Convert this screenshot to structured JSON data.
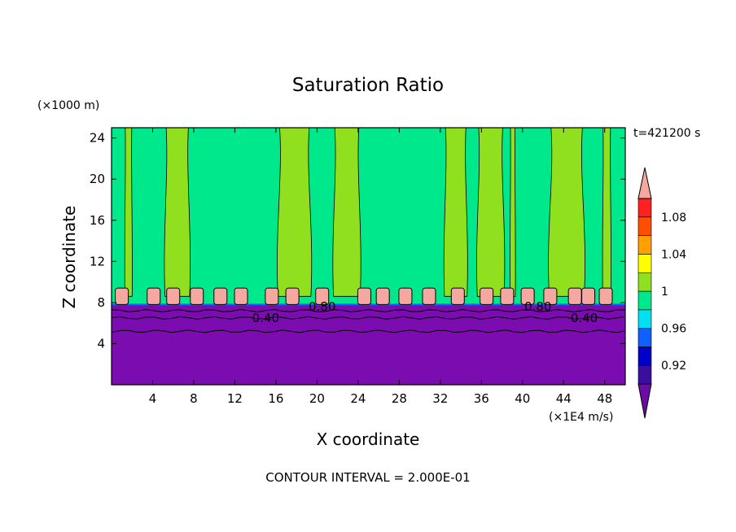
{
  "chart_data": {
    "type": "heatmap",
    "title": "Saturation Ratio",
    "xlabel": "X coordinate",
    "ylabel": "Z coordinate",
    "x_unit": "(×1E4 m/s)",
    "y_unit": "(×1000 m)",
    "time_label": "t=421200 s",
    "footer": "CONTOUR INTERVAL = 2.000E-01",
    "xlim": [
      0,
      50
    ],
    "ylim": [
      0,
      25
    ],
    "x_ticks": [
      4,
      8,
      12,
      16,
      20,
      24,
      28,
      32,
      36,
      40,
      44,
      48
    ],
    "y_ticks": [
      4,
      8,
      12,
      16,
      20,
      24
    ],
    "contour_labels": [
      {
        "text": "0.40",
        "x": 15.0,
        "z": 6.5
      },
      {
        "text": "0.80",
        "x": 20.5,
        "z": 7.6
      },
      {
        "text": "0.80",
        "x": 41.5,
        "z": 7.6
      },
      {
        "text": "0.40",
        "x": 46.0,
        "z": 6.5
      }
    ],
    "colorbar": {
      "tick_labels": [
        "1.08",
        "1.04",
        "1",
        "0.96",
        "0.92"
      ],
      "levels": [
        0.9,
        0.92,
        0.94,
        0.96,
        0.98,
        1.0,
        1.02,
        1.04,
        1.06,
        1.08,
        1.1
      ],
      "colors": [
        "#6a0ca8",
        "#3a0fa0",
        "#0000c8",
        "#1060ff",
        "#00e0f0",
        "#00e88c",
        "#90e020",
        "#ffff00",
        "#ffa000",
        "#ff5000",
        "#ff2020",
        "#f4a8a0"
      ]
    },
    "regions": {
      "dry_layer_top_z": 7.8,
      "dry_color": "#7a0cb0",
      "upper_color": "#00e88c",
      "column_color": "#90e020",
      "cap_color": "#f4a8a0",
      "columns": [
        {
          "x0": 5.2,
          "x1": 7.6
        },
        {
          "x0": 16.2,
          "x1": 19.4
        },
        {
          "x0": 21.6,
          "x1": 24.2
        },
        {
          "x0": 32.4,
          "x1": 34.6
        },
        {
          "x0": 35.6,
          "x1": 38.2
        },
        {
          "x0": 42.6,
          "x1": 46.0
        },
        {
          "x0": 1.3,
          "x1": 2.0
        },
        {
          "x0": 38.8,
          "x1": 39.3
        },
        {
          "x0": 47.8,
          "x1": 48.6
        }
      ],
      "caps": [
        1.0,
        4.1,
        6.0,
        8.3,
        10.6,
        12.6,
        15.6,
        17.6,
        20.5,
        24.6,
        26.4,
        28.6,
        30.9,
        33.7,
        36.5,
        38.5,
        40.5,
        42.7,
        45.1,
        46.4,
        48.1
      ]
    }
  }
}
